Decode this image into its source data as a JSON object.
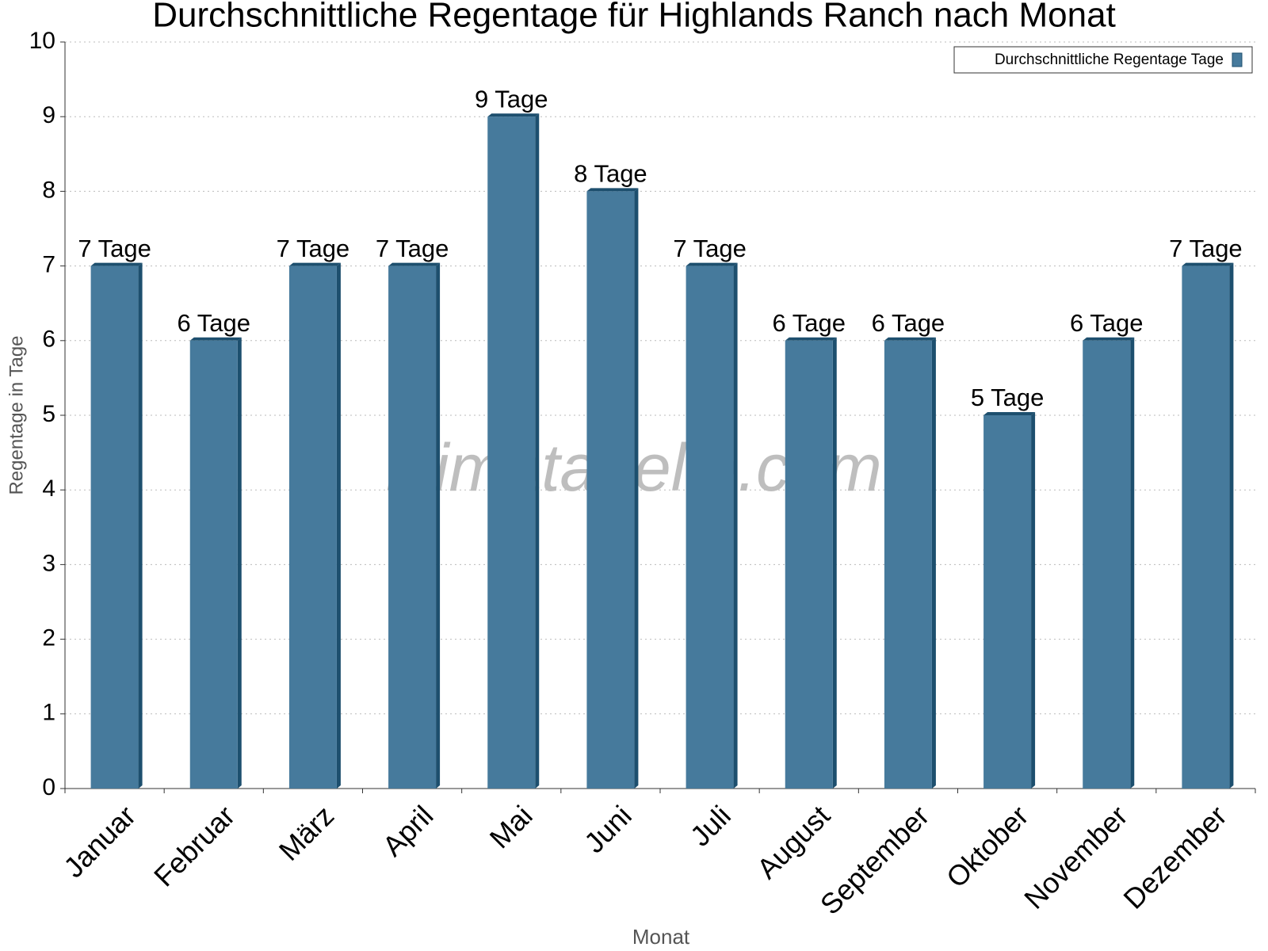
{
  "chart_data": {
    "type": "bar",
    "title": "Durchschnittliche Regentage für Highlands Ranch nach Monat",
    "x_label": "Monat",
    "y_label": "Regentage in Tage",
    "watermark": "klimatabelle.com",
    "categories": [
      "Januar",
      "Februar",
      "März",
      "April",
      "Mai",
      "Juni",
      "Juli",
      "August",
      "September",
      "Oktober",
      "November",
      "Dezember"
    ],
    "series": [
      {
        "name": "Durchschnittliche Regentage Tage",
        "color": "#467a9c",
        "values": [
          7,
          6,
          7,
          7,
          9,
          8,
          7,
          6,
          6,
          5,
          6,
          7
        ],
        "value_labels": [
          "7 Tage",
          "6 Tage",
          "7 Tage",
          "7 Tage",
          "9 Tage",
          "8 Tage",
          "7 Tage",
          "6 Tage",
          "6 Tage",
          "5 Tage",
          "6 Tage",
          "7 Tage"
        ]
      }
    ],
    "ylim": [
      0,
      10
    ],
    "yticks": [
      0,
      1,
      2,
      3,
      4,
      5,
      6,
      7,
      8,
      9,
      10
    ],
    "grid": true,
    "legend": "top-right"
  }
}
